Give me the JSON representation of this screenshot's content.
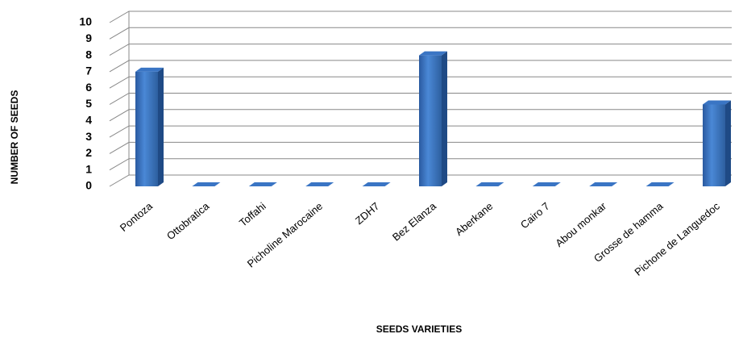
{
  "chart_data": {
    "type": "bar3d",
    "x_label": "SEEDS VARIETIES",
    "y_label": "NUMBER OF SEEDS",
    "categories": [
      "Pontoza",
      "Ottobratica",
      "Toffahi",
      "Picholine Marocaine",
      "ZDH7",
      "Bez Elanza",
      "Aberkane",
      "Cairo 7",
      "Abou monkar",
      "Grosse de hamma",
      "Pichone de Languedoc"
    ],
    "values": [
      7,
      0,
      0,
      0,
      0,
      8,
      0,
      0,
      0,
      0,
      5
    ],
    "color": "#3a75c4",
    "ylim": [
      0,
      10
    ],
    "yticks": [
      0,
      1,
      2,
      3,
      4,
      5,
      6,
      7,
      8,
      9,
      10
    ],
    "grid": true
  }
}
